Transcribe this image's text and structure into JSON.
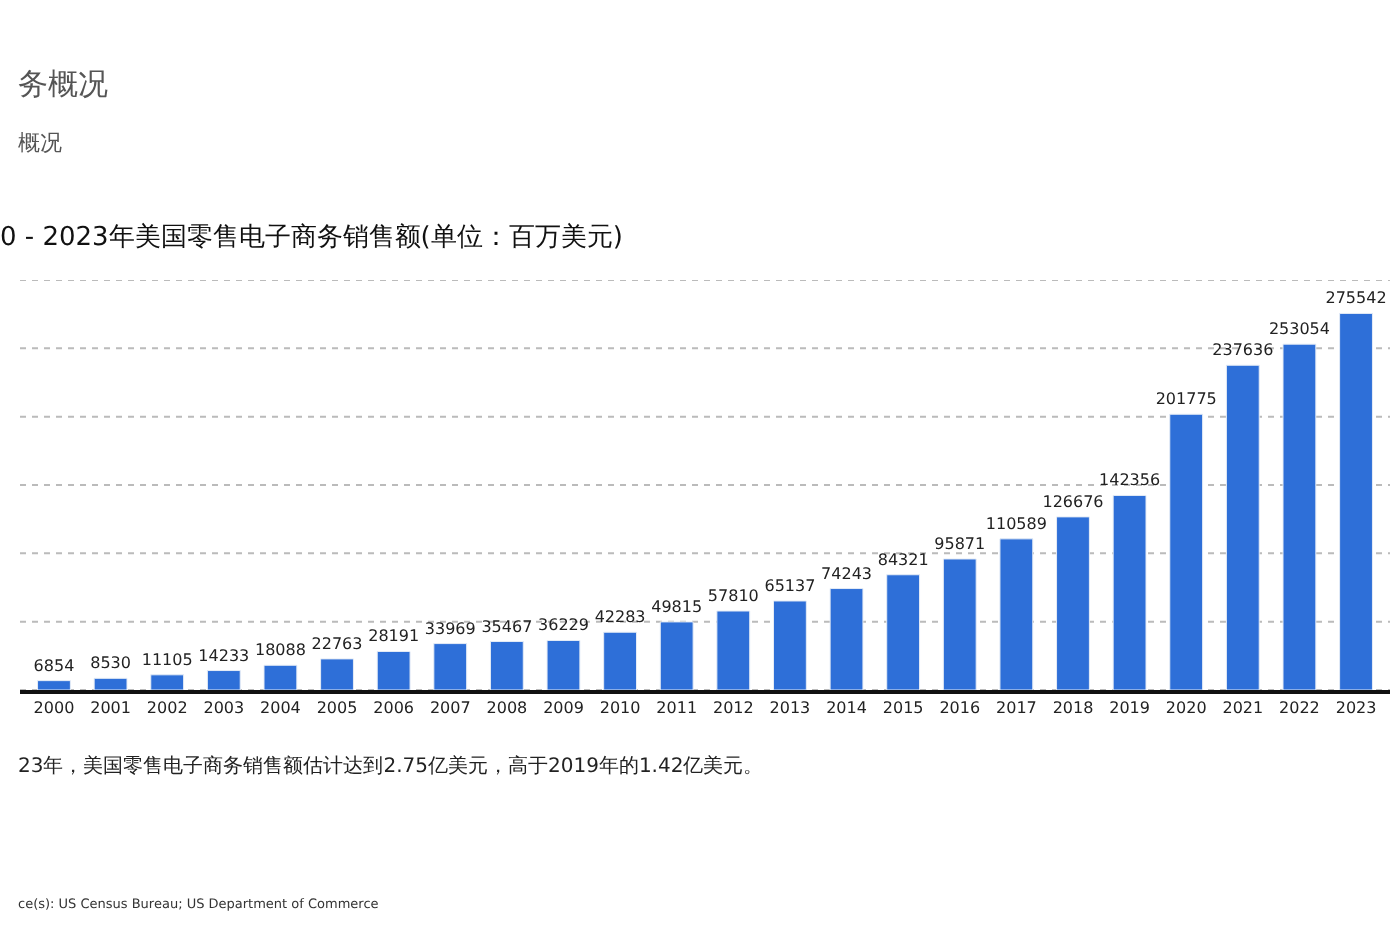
{
  "chart_data": {
    "type": "bar",
    "title": "0 - 2023年美国零售电子商务销售额(单位：百万美元)",
    "categories": [
      "2000",
      "2001",
      "2002",
      "2003",
      "2004",
      "2005",
      "2006",
      "2007",
      "2008",
      "2009",
      "2010",
      "2011",
      "2012",
      "2013",
      "2014",
      "2015",
      "2016",
      "2017",
      "2018",
      "2019",
      "2020",
      "2021",
      "2022",
      "2023"
    ],
    "series": [
      {
        "color": "#2e6fd8",
        "values": [
          6854,
          8530,
          11105,
          14233,
          18088,
          22763,
          28191,
          33969,
          35467,
          36229,
          42283,
          49815,
          57810,
          65137,
          74243,
          84321,
          95871,
          110589,
          126676,
          142356,
          201775,
          237636,
          253054,
          275542
        ]
      }
    ],
    "ylim": [
      0,
      300000
    ],
    "yticks": [
      {
        "value": 0,
        "label": null
      },
      {
        "value": 50000,
        "label": null
      },
      {
        "value": 100000,
        "label": null
      },
      {
        "value": 150000,
        "label": null
      },
      {
        "value": 200000,
        "label": null
      },
      {
        "value": 250000,
        "label": null
      },
      {
        "value": 300000,
        "label": null
      }
    ],
    "tick_labels": "x",
    "grid": "y",
    "legend": false,
    "data_labels": true,
    "annotations": [
      "务概况",
      "概况",
      "23年，美国零售电子商务销售额估计达到2.75亿美元，高于2019年的1.42亿美元。",
      "ce(s): US Census Bureau; US Department of Commerce"
    ]
  }
}
